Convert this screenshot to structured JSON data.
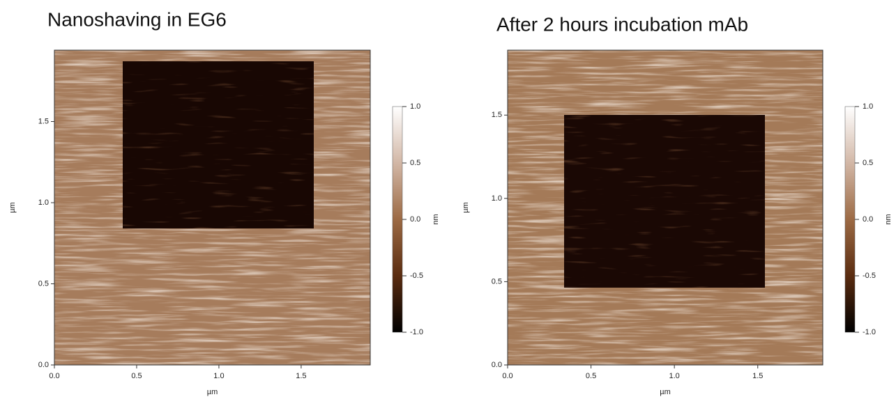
{
  "chart_data": [
    {
      "type": "heatmap",
      "title": "Nanoshaving in EG6",
      "xlabel": "µm",
      "ylabel": "µm",
      "xlim": [
        0,
        1.92
      ],
      "ylim": [
        0,
        1.94
      ],
      "xticks": [
        {
          "value": 0,
          "label": "0.0"
        },
        0.5,
        {
          "value": 1,
          "label": "1.0"
        },
        1.5
      ],
      "yticks": [
        {
          "value": 0,
          "label": "0.0"
        },
        0.5,
        {
          "value": 1,
          "label": "1.0"
        },
        1.5
      ],
      "colorbar": {
        "label": "nm",
        "lim": [
          -1,
          1
        ],
        "colors": [
          "#000000",
          "#5a2c10",
          "#9c6a44",
          "#d2b7a6",
          "#ffffff"
        ],
        "ticks": [
          {
            "value": -1,
            "label": "-1.0"
          },
          -0.5,
          {
            "value": 0,
            "label": "0.0"
          },
          0.5,
          {
            "value": 1,
            "label": "1.0"
          }
        ]
      }
    },
    {
      "type": "heatmap",
      "title": "After 2 hours incubation mAb",
      "xlabel": "µm",
      "ylabel": "µm",
      "xlim": [
        0,
        1.89
      ],
      "ylim": [
        0,
        1.89
      ],
      "xticks": [
        {
          "value": 0,
          "label": "0.0"
        },
        0.5,
        {
          "value": 1,
          "label": "1.0"
        },
        1.5
      ],
      "yticks": [
        {
          "value": 0,
          "label": "0.0"
        },
        0.5,
        {
          "value": 1,
          "label": "1.0"
        },
        1.5
      ],
      "colorbar": {
        "label": "nm",
        "lim": [
          -1,
          1
        ],
        "colors": [
          "#000000",
          "#5a2c10",
          "#9c6a44",
          "#d2b7a6",
          "#ffffff"
        ],
        "ticks": [
          {
            "value": -1,
            "label": "-1.0"
          },
          -0.5,
          {
            "value": 0,
            "label": "0.0"
          },
          0.5,
          {
            "value": 1,
            "label": "1.0"
          }
        ]
      }
    }
  ]
}
